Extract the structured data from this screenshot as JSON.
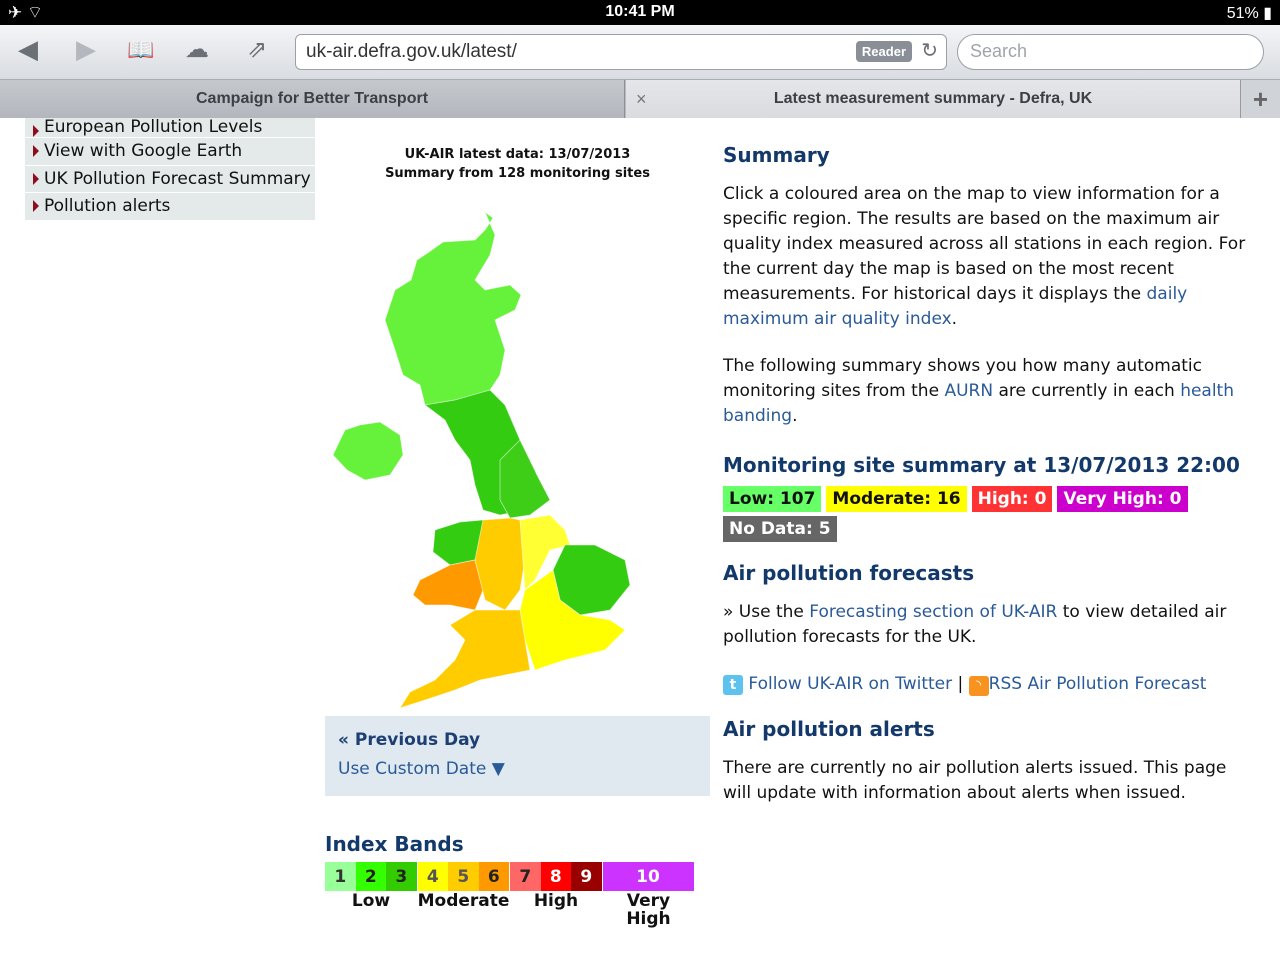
{
  "status": {
    "time": "10:41 PM",
    "battery": "51%"
  },
  "browser": {
    "url": "uk-air.defra.gov.uk/latest/",
    "reader": "Reader",
    "search_placeholder": "Search",
    "tabs": [
      {
        "label": "Campaign for Better Transport"
      },
      {
        "label": "Latest measurement summary - Defra, UK"
      }
    ]
  },
  "leftnav": {
    "items": [
      "European Pollution Levels",
      "View with Google Earth",
      "UK Pollution Forecast Summary",
      "Pollution alerts"
    ]
  },
  "map": {
    "title": "UK-AIR latest data: 13/07/2013",
    "subtitle": "Summary from 128 monitoring sites",
    "colors": {
      "low1": "#66f23a",
      "low2": "#33cc11",
      "low3": "#44c81f",
      "mod4": "#ffff00",
      "mod5": "#ffcc00",
      "mod6": "#ff9900"
    },
    "prev_day": "« Previous Day",
    "custom_date": "Use Custom Date ▼"
  },
  "index": {
    "title": "Index Bands",
    "bands": [
      {
        "n": "1",
        "bg": "#99ff99",
        "fg": "#333"
      },
      {
        "n": "2",
        "bg": "#33ff00",
        "fg": "#222"
      },
      {
        "n": "3",
        "bg": "#33cc00",
        "fg": "#222"
      },
      {
        "n": "4",
        "bg": "#ffff00",
        "fg": "#555"
      },
      {
        "n": "5",
        "bg": "#ffcc00",
        "fg": "#555"
      },
      {
        "n": "6",
        "bg": "#ff9900",
        "fg": "#222"
      },
      {
        "n": "7",
        "bg": "#ff6666",
        "fg": "#222"
      },
      {
        "n": "8",
        "bg": "#ff0000",
        "fg": "#fff"
      },
      {
        "n": "9",
        "bg": "#990000",
        "fg": "#fff"
      },
      {
        "n": "10",
        "bg": "#cc33ff",
        "fg": "#fff"
      }
    ],
    "labels": [
      "Low",
      "Moderate",
      "High",
      "Very High"
    ]
  },
  "summary": {
    "heading": "Summary",
    "p1": "Click a coloured area on the map to view information for a specific region. The results are based on the maximum air quality index measured across all stations in each region. For the current day the map is based on the most recent measurements. For historical days it displays the ",
    "p1_link": "daily maximum air quality index",
    "p1_end": ".",
    "p2a": "The following summary shows you how many automatic monitoring sites from the ",
    "p2_link1": "AURN",
    "p2b": " are currently in each ",
    "p2_link2": "health banding",
    "p2_end": "."
  },
  "site_summary": {
    "heading": "Monitoring site summary at 13/07/2013 22:00",
    "badges": [
      {
        "label": "Low: 107",
        "bg": "#66ff66",
        "fg": "#111"
      },
      {
        "label": "Moderate: 16",
        "bg": "#ffff00",
        "fg": "#111"
      },
      {
        "label": "High: 0",
        "bg": "#ff3333",
        "fg": "#fff"
      },
      {
        "label": "Very High: 0",
        "bg": "#cc00cc",
        "fg": "#fff"
      },
      {
        "label": "No Data: 5",
        "bg": "#666666",
        "fg": "#fff"
      }
    ]
  },
  "forecasts": {
    "heading": "Air pollution forecasts",
    "a": "» Use the ",
    "link": "Forecasting section of UK-AIR",
    "b": " to view detailed air pollution forecasts for the UK.",
    "twitter": "Follow UK-AIR on Twitter",
    "sep": "|",
    "rss": "RSS Air Pollution Forecast"
  },
  "alerts": {
    "heading": "Air pollution alerts",
    "text": "There are currently no air pollution alerts issued. This page will update with information about alerts when issued."
  }
}
